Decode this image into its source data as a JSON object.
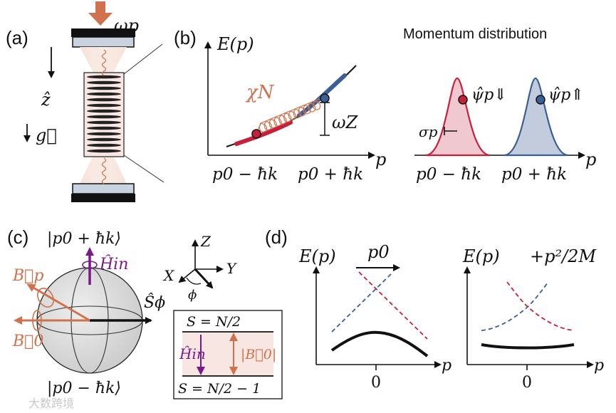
{
  "colors": {
    "red": "#c8203a",
    "blue": "#3a5f96",
    "orange": "#d0724e",
    "purple": "#7a1a8a",
    "black": "#111111",
    "cavity": "#c8d3df",
    "sphere": "#d9d9d9",
    "pinkfill": "#f0c8cf",
    "bluefill": "#c2ccdc"
  },
  "a": {
    "label": "(a)",
    "pump": "ωp",
    "z": "ẑ",
    "g": "g⃗"
  },
  "b": {
    "label": "(b)",
    "ylabel": "E(p)",
    "xlabel": "p",
    "tick_left": "p0 − ħk",
    "tick_right": "p0 + ħk",
    "coupling": "χN",
    "zeeman": "ωZ",
    "momentum_title": "Momentum distribution",
    "psi_down": "ψ̂p⇓",
    "psi_up": "ψ̂p⇑",
    "sigma": "σp",
    "m_tick_left": "p0 − ħk",
    "m_tick_right": "p0 + ħk",
    "m_xlabel": "p"
  },
  "c": {
    "label": "(c)",
    "top_state": "|p0 + ħk⟩",
    "bottom_state": "|p0 − ħk⟩",
    "H_in": "Ĥin",
    "B_p": "B⃗p",
    "B_0": "B⃗0",
    "S_phi": "Ŝϕ",
    "axis_Z": "Z",
    "axis_X": "X",
    "axis_Y": "Y",
    "phi": "ϕ",
    "level_top": "S = N/2",
    "level_bottom": "S = N/2 − 1",
    "box_H": "Ĥin",
    "box_B": "|B⃗0|"
  },
  "d": {
    "label": "(d)",
    "left_ylabel": "E(p)",
    "arrow_label": "p0",
    "right_ylabel": "E(p)",
    "right_term": "+p²/2M",
    "xlabel_left": "p",
    "xlabel_right": "p",
    "zero_left": "0",
    "zero_right": "0"
  },
  "watermark": "大数跨境"
}
